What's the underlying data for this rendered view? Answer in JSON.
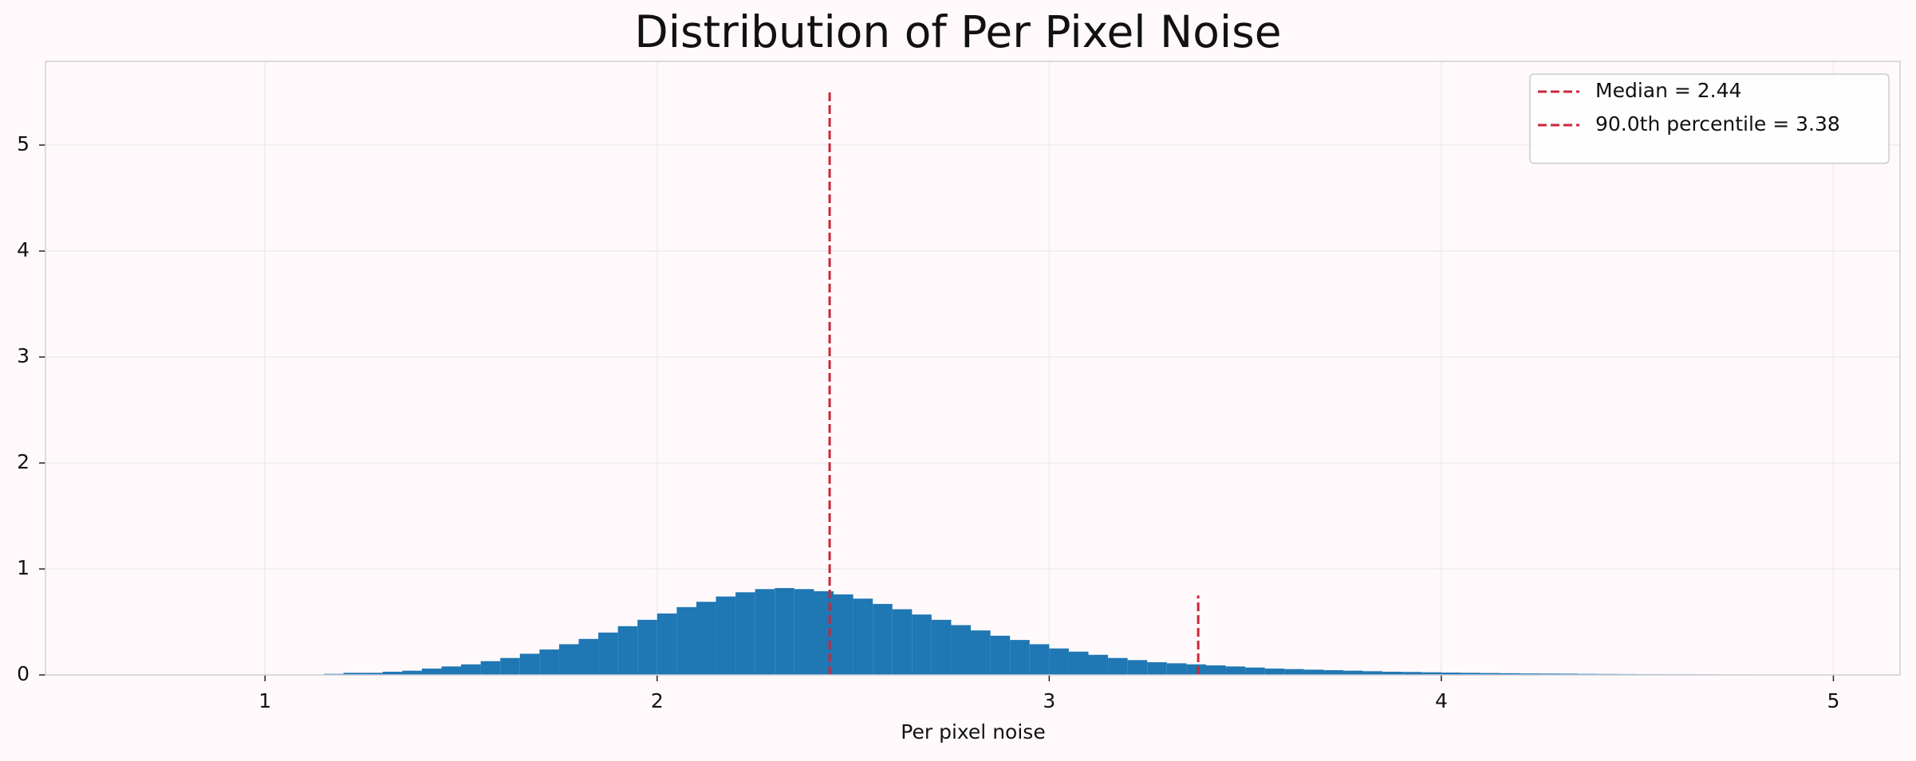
{
  "chart_data": {
    "type": "histogram",
    "title": "Distribution of Per Pixel Noise",
    "x_label": "Per pixel noise",
    "bins": [
      1.15,
      1.2,
      1.25,
      1.3,
      1.35,
      1.4,
      1.45,
      1.5,
      1.55,
      1.6,
      1.65,
      1.7,
      1.75,
      1.8,
      1.85,
      1.9,
      1.95,
      2.0,
      2.05,
      2.1,
      2.15,
      2.2,
      2.25,
      2.3,
      2.35,
      2.4,
      2.45,
      2.5,
      2.55,
      2.6,
      2.65,
      2.7,
      2.75,
      2.8,
      2.85,
      2.9,
      2.95,
      3.0,
      3.05,
      3.1,
      3.15,
      3.2,
      3.25,
      3.3,
      3.35,
      3.4,
      3.45,
      3.5,
      3.55,
      3.6,
      3.65,
      3.7,
      3.75,
      3.8,
      3.85,
      3.9,
      3.95,
      4.0,
      4.05,
      4.1,
      4.15,
      4.2,
      4.25,
      4.3,
      4.35,
      4.4,
      4.45,
      4.5,
      4.55,
      4.6,
      4.65,
      4.7,
      4.75,
      4.8,
      4.85,
      4.9,
      4.95
    ],
    "counts": [
      0.01,
      0.02,
      0.02,
      0.03,
      0.04,
      0.06,
      0.08,
      0.1,
      0.13,
      0.16,
      0.2,
      0.24,
      0.29,
      0.34,
      0.4,
      0.46,
      0.52,
      0.58,
      0.64,
      0.69,
      0.74,
      0.78,
      0.81,
      0.82,
      0.81,
      0.79,
      0.76,
      0.72,
      0.67,
      0.62,
      0.57,
      0.52,
      0.47,
      0.42,
      0.37,
      0.33,
      0.29,
      0.25,
      0.22,
      0.19,
      0.16,
      0.14,
      0.12,
      0.11,
      0.1,
      0.09,
      0.08,
      0.07,
      0.06,
      0.055,
      0.05,
      0.045,
      0.04,
      0.035,
      0.03,
      0.028,
      0.025,
      0.022,
      0.02,
      0.018,
      0.016,
      0.014,
      0.013,
      0.012,
      0.01,
      0.009,
      0.008,
      0.007,
      0.006,
      0.006,
      0.005,
      0.004,
      0.004,
      0.003,
      0.003,
      0.002
    ],
    "color": "#1f77b4",
    "vlines": [
      {
        "name": "Median =  2.44",
        "x": 2.44,
        "ymax": 5.5,
        "color": "#c8283c"
      },
      {
        "name": "90.0th percentile =  3.38",
        "x": 3.38,
        "ymax": 0.75,
        "color": "#c8283c"
      }
    ],
    "xlim": [
      0.44,
      5.17
    ],
    "ylim": [
      0,
      5.79
    ],
    "xticks": [
      1,
      2,
      3,
      4,
      5
    ],
    "yticks": [
      0,
      1,
      2,
      3,
      4,
      5
    ],
    "grid": true,
    "legend": "upper right"
  }
}
